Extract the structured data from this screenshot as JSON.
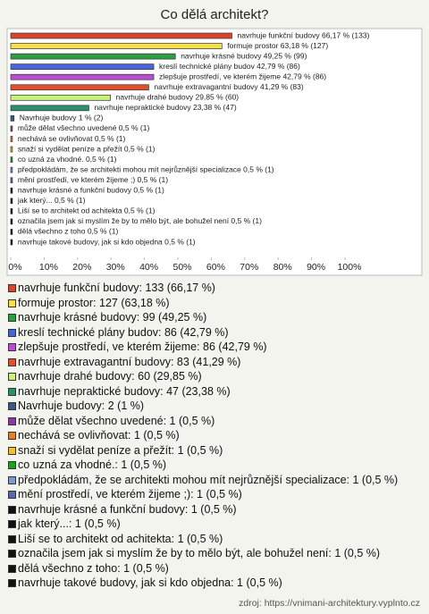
{
  "chart_data": {
    "type": "bar",
    "orientation": "horizontal",
    "title": "Co dělá architekt?",
    "bar_labels": [
      "navrhuje funkční budovy 66,17 % (133)",
      "formuje prostor 63,18 % (127)",
      "navrhuje krásné budovy 49,25 % (99)",
      "kreslí technické plány budov 42,79 % (86)",
      "zlepšuje prostředí, ve kterém žijeme 42,79 % (86)",
      "navrhuje extravagantní budovy 41,29 % (83)",
      "navrhuje drahé budovy 29,85 % (60)",
      "navrhuje nepraktické budovy 23,38 % (47)",
      "Navrhuje budovy 1 % (2)",
      "může dělat všechno uvedené 0,5 % (1)",
      "nechává se ovlivňovat 0,5 % (1)",
      "snaží si vydělat peníze a přežít 0,5 % (1)",
      "co uzná za vhodné. 0,5 % (1)",
      "předpokládám, že se architekti mohou mít nejrůznější specializace 0,5 % (1)",
      "mění prostředí, ve kterém žijeme ;) 0,5 % (1)",
      "navrhuje krásné a funkční budovy 0,5 % (1)",
      "jak který... 0,5 % (1)",
      "Liší se to architekt od achitekta 0,5 % (1)",
      "označila jsem jak si myslím že by to mělo být, ale bohužel není 0,5 % (1)",
      "dělá všechno z toho 0,5 % (1)",
      "navrhuje takové budovy, jak si kdo objedna 0,5 % (1)"
    ],
    "values": [
      66.17,
      63.18,
      49.25,
      42.79,
      42.79,
      41.29,
      29.85,
      23.38,
      1,
      0.5,
      0.5,
      0.5,
      0.5,
      0.5,
      0.5,
      0.5,
      0.5,
      0.5,
      0.5,
      0.5,
      0.5
    ],
    "colors": [
      "#d9442a",
      "#f5e04a",
      "#2e9e44",
      "#4a64d8",
      "#b84ed0",
      "#e0502c",
      "#c8f07a",
      "#2e8f6a",
      "#3a5a80",
      "#8a3aa0",
      "#e0802a",
      "#f0c030",
      "#20a020",
      "#7a9ad0",
      "#5a6aa8",
      "#111111",
      "#111111",
      "#111111",
      "#111111",
      "#111111",
      "#111111"
    ],
    "legend_labels": [
      "navrhuje funkční budovy: 133 (66,17 %)",
      "formuje prostor: 127 (63,18 %)",
      "navrhuje krásné budovy: 99 (49,25 %)",
      "kreslí technické plány budov: 86 (42,79 %)",
      "zlepšuje prostředí, ve kterém žijeme: 86 (42,79 %)",
      "navrhuje extravagantní budovy: 83 (41,29 %)",
      "navrhuje drahé budovy: 60 (29,85 %)",
      "navrhuje nepraktické budovy: 47 (23,38 %)",
      "Navrhuje budovy: 2 (1 %)",
      "může dělat všechno uvedené: 1 (0,5 %)",
      "nechává se ovlivňovat: 1 (0,5 %)",
      "snaží si vydělat peníze a přežít: 1 (0,5 %)",
      "co uzná za vhodné.: 1 (0,5 %)",
      "předpokládám, že se architekti mohou mít nejrůznější specializace: 1 (0,5 %)",
      "mění prostředí, ve kterém žijeme ;): 1 (0,5 %)",
      "navrhuje krásné a funkční budovy: 1 (0,5 %)",
      "jak který...: 1 (0,5 %)",
      "Liší se to architekt od achitekta: 1 (0,5 %)",
      "označila jsem jak si myslím že by to mělo být, ale bohužel není: 1 (0,5 %)",
      "dělá všechno z toho: 1 (0,5 %)",
      "navrhuje takové budovy, jak si kdo objedna: 1 (0,5 %)"
    ],
    "xlim": [
      0,
      100
    ],
    "xticks": [
      {
        "value": 0,
        "label": "0%"
      },
      {
        "value": 10,
        "label": "10%"
      },
      {
        "value": 20,
        "label": "20%"
      },
      {
        "value": 30,
        "label": "30%"
      },
      {
        "value": 40,
        "label": "40%"
      },
      {
        "value": 50,
        "label": "50%"
      },
      {
        "value": 60,
        "label": "60%"
      },
      {
        "value": 70,
        "label": "70%"
      },
      {
        "value": 80,
        "label": "80%"
      },
      {
        "value": 90,
        "label": "90%"
      },
      {
        "value": 100,
        "label": "100%"
      }
    ]
  },
  "source": "zdroj: https://vnimani-architektury.vyplnto.cz"
}
